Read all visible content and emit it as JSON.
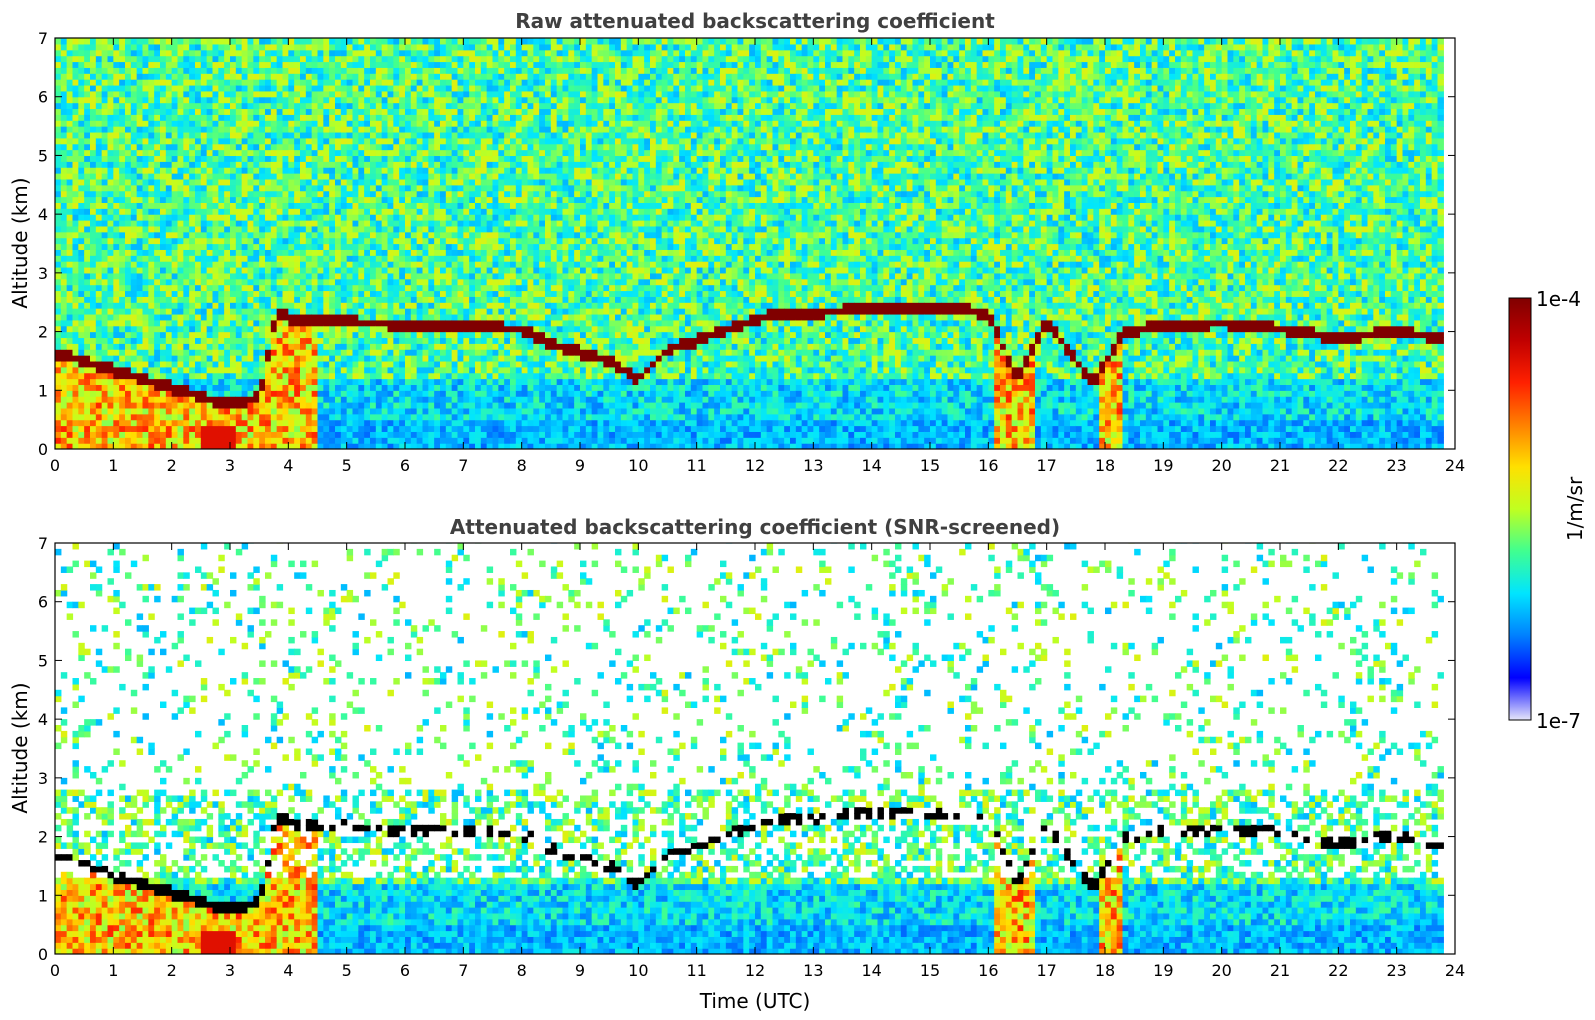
{
  "chart_data": [
    {
      "type": "heatmap",
      "title": "Raw attenuated backscattering coefficient",
      "xlabel": "",
      "ylabel": "Altitude (km)",
      "xlim": [
        0,
        24
      ],
      "ylim": [
        0,
        7
      ],
      "x_ticks": [
        "0",
        "1",
        "2",
        "3",
        "4",
        "5",
        "6",
        "7",
        "8",
        "9",
        "10",
        "11",
        "12",
        "13",
        "14",
        "15",
        "16",
        "17",
        "18",
        "19",
        "20",
        "21",
        "22",
        "23",
        "24"
      ],
      "y_ticks": [
        "0",
        "1",
        "2",
        "3",
        "4",
        "5",
        "6",
        "7"
      ],
      "data_end_time": 23.8,
      "colorscale": "jet",
      "snr_screened": false,
      "cloud_layer_height_km": [
        [
          0,
          1.65
        ],
        [
          1,
          1.35
        ],
        [
          2,
          1.05
        ],
        [
          3,
          0.75
        ],
        [
          3.5,
          0.9
        ],
        [
          3.8,
          2.3
        ],
        [
          4.2,
          2.2
        ],
        [
          8.0,
          2.05
        ],
        [
          8.5,
          1.8
        ],
        [
          9.5,
          1.5
        ],
        [
          10.0,
          1.2
        ],
        [
          10.5,
          1.7
        ],
        [
          11.0,
          1.85
        ],
        [
          12.1,
          2.25
        ],
        [
          14.0,
          2.4
        ],
        [
          15.5,
          2.4
        ],
        [
          16.0,
          2.3
        ],
        [
          16.5,
          1.2
        ],
        [
          17.0,
          2.2
        ],
        [
          17.8,
          1.1
        ],
        [
          18.3,
          2.0
        ],
        [
          19.0,
          2.1
        ],
        [
          20.0,
          2.15
        ],
        [
          21.0,
          2.05
        ],
        [
          22.0,
          1.9
        ],
        [
          23.0,
          2.0
        ],
        [
          23.8,
          1.9
        ]
      ]
    },
    {
      "type": "heatmap",
      "title": "Attenuated backscattering coefficient (SNR-screened)",
      "xlabel": "Time (UTC)",
      "ylabel": "Altitude (km)",
      "xlim": [
        0,
        24
      ],
      "ylim": [
        0,
        7
      ],
      "x_ticks": [
        "0",
        "1",
        "2",
        "3",
        "4",
        "5",
        "6",
        "7",
        "8",
        "9",
        "10",
        "11",
        "12",
        "13",
        "14",
        "15",
        "16",
        "17",
        "18",
        "19",
        "20",
        "21",
        "22",
        "23",
        "24"
      ],
      "y_ticks": [
        "0",
        "1",
        "2",
        "3",
        "4",
        "5",
        "6",
        "7"
      ],
      "data_end_time": 23.8,
      "colorscale": "jet",
      "snr_screened": true
    }
  ],
  "colorbar": {
    "label": "1/m/sr",
    "max_label": "1e-4",
    "min_label": "1e-7",
    "scale": "log",
    "range": [
      1e-07,
      0.0001
    ],
    "colors": [
      "#e6e6fa",
      "#0000ff",
      "#0080ff",
      "#00e5ff",
      "#40ff90",
      "#c0ff20",
      "#ffe000",
      "#ff8000",
      "#ff2000",
      "#c00000",
      "#800000"
    ]
  }
}
